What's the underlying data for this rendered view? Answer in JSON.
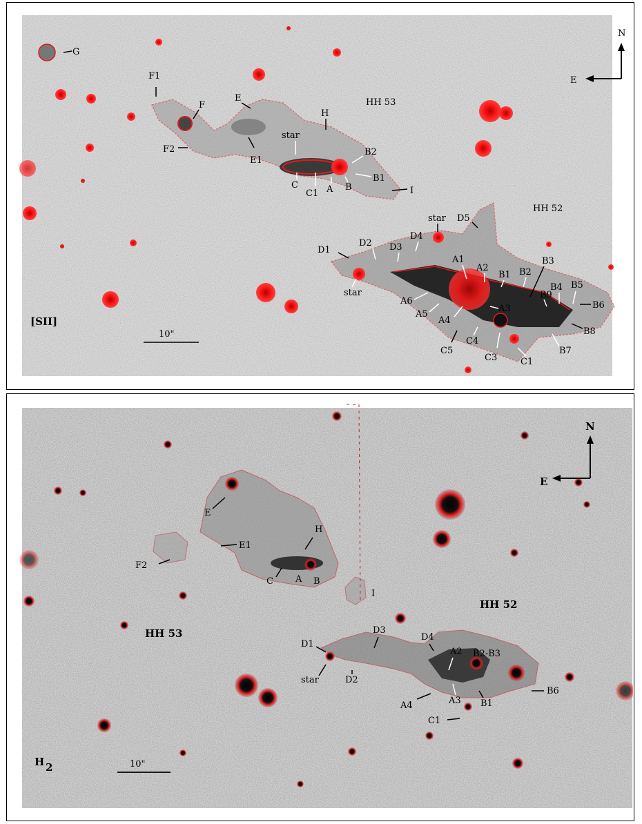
{
  "panels": {
    "top": {
      "filter": "[SII]",
      "scale_bar": "10\"",
      "compass": {
        "north": "N",
        "east": "E"
      },
      "regions": {
        "hh53": "HH 53",
        "hh52": "HH 52"
      },
      "knots_hh53": [
        "G",
        "F1",
        "F",
        "F2",
        "E",
        "E1",
        "H",
        "star",
        "B2",
        "B1",
        "I",
        "C",
        "C1",
        "A",
        "B"
      ],
      "knots_hh52": [
        "star",
        "D5",
        "D4",
        "D2",
        "D3",
        "D1",
        "A1",
        "A2",
        "B1",
        "B2",
        "B3",
        "B9",
        "B4",
        "B5",
        "B6",
        "A6",
        "A5",
        "A4",
        "A3",
        "B8",
        "B7",
        "C5",
        "C4",
        "C3",
        "C1",
        "star"
      ],
      "colors": {
        "contour": "#e01a1a",
        "emission": "#2a2a2a",
        "background": "#d8d8d8"
      }
    },
    "bottom": {
      "filter": "H",
      "filter_sub": "2",
      "scale_bar": "10\"",
      "compass": {
        "north": "N",
        "east": "E"
      },
      "regions": {
        "hh53": "HH 53",
        "hh52": "HH 52"
      },
      "knots_hh53": [
        "E",
        "H",
        "E1",
        "F2",
        "C",
        "A",
        "B"
      ],
      "knots_hh52": [
        "I",
        "D3",
        "D1",
        "D4",
        "A2",
        "B2-B3",
        "star",
        "D2",
        "A4",
        "A3",
        "B1",
        "B6",
        "C1"
      ],
      "colors": {
        "contour": "#c0262a",
        "emission": "#4a4a4a",
        "background": "#cfcfcf"
      }
    }
  }
}
